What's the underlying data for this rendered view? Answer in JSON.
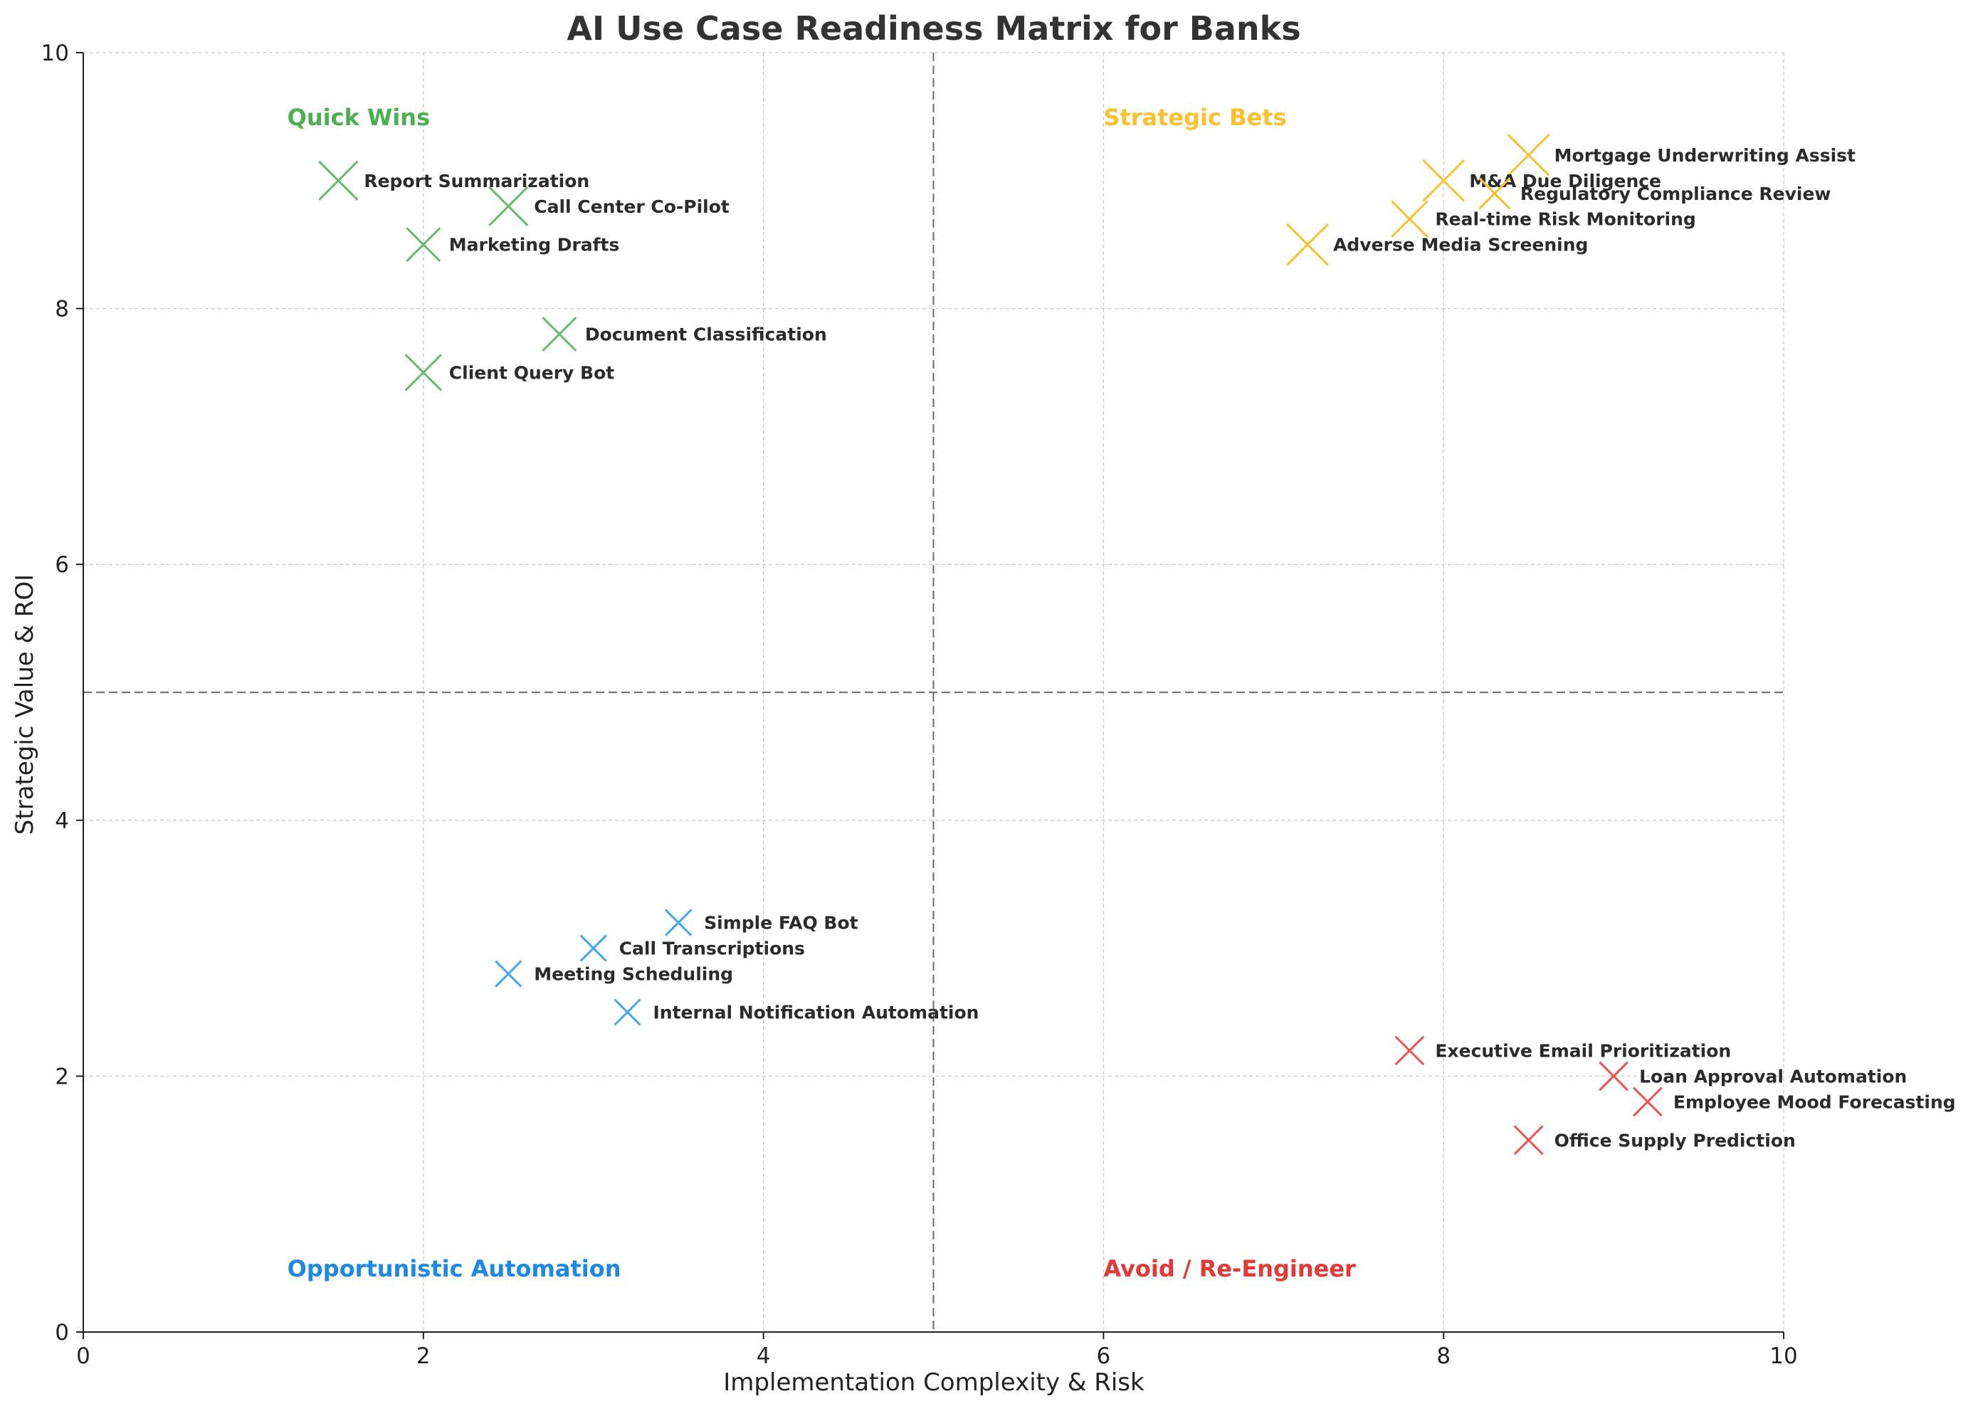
{
  "chart_data": {
    "type": "scatter",
    "title": "AI Use Case Readiness Matrix for Banks",
    "xlabel": "Implementation Complexity & Risk",
    "ylabel": "Strategic Value & ROI",
    "xlim": [
      0,
      10
    ],
    "ylim": [
      0,
      10
    ],
    "xticks": [
      0,
      2,
      4,
      6,
      8,
      10
    ],
    "yticks": [
      0,
      2,
      4,
      6,
      8,
      10
    ],
    "grid": true,
    "divider_x": 5,
    "divider_y": 5,
    "marker": "x",
    "quadrant_labels": [
      {
        "text": "Quick Wins",
        "x": 1.2,
        "y": 9.5,
        "color": "#4caf50"
      },
      {
        "text": "Strategic Bets",
        "x": 6.0,
        "y": 9.5,
        "color": "#fbc02d"
      },
      {
        "text": "Opportunistic Automation",
        "x": 1.2,
        "y": 0.5,
        "color": "#1e88e5"
      },
      {
        "text": "Avoid / Re-Engineer",
        "x": 6.0,
        "y": 0.5,
        "color": "#e53935"
      }
    ],
    "groups": [
      {
        "quadrant": "Quick Wins",
        "color": "#66bb6a",
        "points": [
          {
            "label": "Report Summarization",
            "x": 1.5,
            "y": 9.0,
            "size": 3
          },
          {
            "label": "Call Center Co-Pilot",
            "x": 2.5,
            "y": 8.8,
            "size": 3
          },
          {
            "label": "Marketing Drafts",
            "x": 2.0,
            "y": 8.5,
            "size": 2.6
          },
          {
            "label": "Document Classification",
            "x": 2.8,
            "y": 7.8,
            "size": 2.6
          },
          {
            "label": "Client Query Bot",
            "x": 2.0,
            "y": 7.5,
            "size": 2.8
          }
        ]
      },
      {
        "quadrant": "Strategic Bets",
        "color": "#fbc02d",
        "points": [
          {
            "label": "Mortgage Underwriting Assist",
            "x": 8.5,
            "y": 9.2,
            "size": 3.2
          },
          {
            "label": "M&A Due Diligence",
            "x": 8.0,
            "y": 9.0,
            "size": 3.2
          },
          {
            "label": "Regulatory Compliance Review",
            "x": 8.3,
            "y": 8.9,
            "size": 2.4
          },
          {
            "label": "Real-time Risk Monitoring",
            "x": 7.8,
            "y": 8.7,
            "size": 2.8
          },
          {
            "label": "Adverse Media Screening",
            "x": 7.2,
            "y": 8.5,
            "size": 3.2
          }
        ]
      },
      {
        "quadrant": "Opportunistic Automation",
        "color": "#42a5f5",
        "points": [
          {
            "label": "Simple FAQ Bot",
            "x": 3.5,
            "y": 3.2,
            "size": 2
          },
          {
            "label": "Call Transcriptions",
            "x": 3.0,
            "y": 3.0,
            "size": 2
          },
          {
            "label": "Meeting Scheduling",
            "x": 2.5,
            "y": 2.8,
            "size": 2
          },
          {
            "label": "Internal Notification Automation",
            "x": 3.2,
            "y": 2.5,
            "size": 2
          }
        ]
      },
      {
        "quadrant": "Avoid / Re-Engineer",
        "color": "#ef5350",
        "points": [
          {
            "label": "Executive Email Prioritization",
            "x": 7.8,
            "y": 2.2,
            "size": 2.2
          },
          {
            "label": "Loan Approval Automation",
            "x": 9.0,
            "y": 2.0,
            "size": 2.2
          },
          {
            "label": "Employee Mood Forecasting",
            "x": 9.2,
            "y": 1.8,
            "size": 2.2
          },
          {
            "label": "Office Supply Prediction",
            "x": 8.5,
            "y": 1.5,
            "size": 2.2
          }
        ]
      }
    ]
  }
}
